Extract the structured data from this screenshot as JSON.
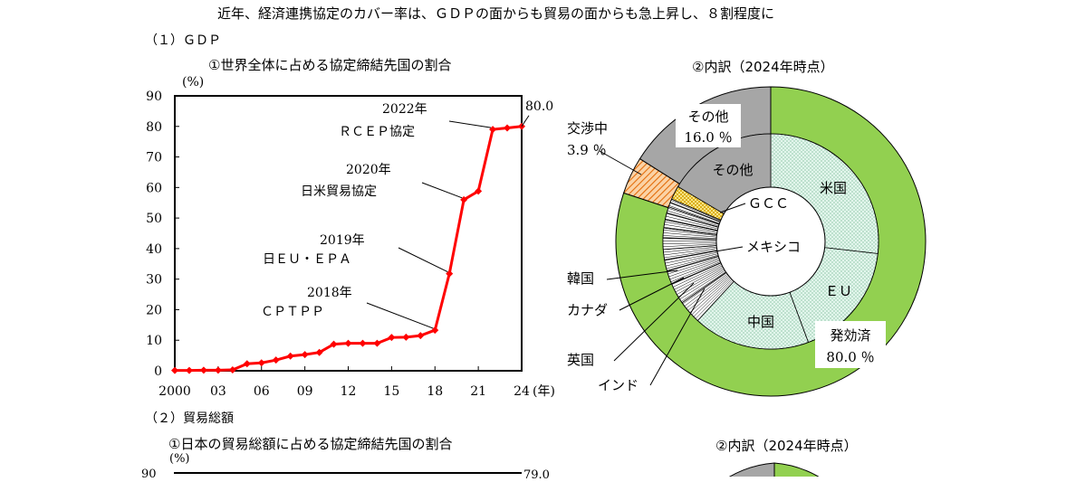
{
  "page": {
    "headline": "近年、経済連携協定のカバー率は、ＧＤＰの面からも貿易の面からも急上昇し、８割程度に",
    "section1": "（１）ＧＤＰ",
    "section2": "（２）貿易総額"
  },
  "chart_data": [
    {
      "type": "line",
      "title": "①世界全体に占める協定締結先国の割合",
      "ylabel": "(%)",
      "xunit": "(年)",
      "ylim": [
        0,
        90
      ],
      "yticks": [
        0,
        10,
        20,
        30,
        40,
        50,
        60,
        70,
        80,
        90
      ],
      "xticks": [
        "2000",
        "03",
        "06",
        "09",
        "12",
        "15",
        "18",
        "21",
        "24"
      ],
      "xtick_years": [
        2000,
        2003,
        2006,
        2009,
        2012,
        2015,
        2018,
        2021,
        2024
      ],
      "xlim": [
        2000,
        2024
      ],
      "line_color": "#ff0000",
      "x": [
        2000,
        2001,
        2002,
        2003,
        2004,
        2005,
        2006,
        2007,
        2008,
        2009,
        2010,
        2011,
        2012,
        2013,
        2014,
        2015,
        2016,
        2017,
        2018,
        2019,
        2020,
        2021,
        2022,
        2023,
        2024
      ],
      "values": [
        0.1,
        0.1,
        0.2,
        0.2,
        0.3,
        2.3,
        2.6,
        3.5,
        4.8,
        5.3,
        6.0,
        8.7,
        9.0,
        9.0,
        9.0,
        10.9,
        11.0,
        11.5,
        13.3,
        31.8,
        56.0,
        58.8,
        79.0,
        79.5,
        80.0
      ],
      "end_label": "80.0",
      "annotations": [
        {
          "year_label": "2018年",
          "text": "ＣＰＴＰＰ",
          "x": 2018
        },
        {
          "year_label": "2019年",
          "text": "日ＥＵ・ＥＰＡ",
          "x": 2019
        },
        {
          "year_label": "2020年",
          "text": "日米貿易協定",
          "x": 2020
        },
        {
          "year_label": "2022年",
          "text": "ＲＣＥＰ協定",
          "x": 2022
        }
      ]
    },
    {
      "type": "pie",
      "title": "②内訳（2024年時点）",
      "outer": [
        {
          "name": "発効済",
          "value": 80.0,
          "color": "#92d050",
          "value_label": "80.0 ％"
        },
        {
          "name": "交渉中",
          "value": 3.9,
          "color": "#f79646",
          "value_label": "3.9 ％"
        },
        {
          "name": "その他",
          "value": 16.0,
          "color": "#a6a6a6",
          "value_label": "16.0 ％"
        }
      ],
      "inner": [
        {
          "name": "米国",
          "value": 26.0
        },
        {
          "name": "ＥＵ",
          "value": 17.0
        },
        {
          "name": "中国",
          "value": 17.0
        },
        {
          "name": "インド",
          "value": 3.4
        },
        {
          "name": "英国",
          "value": 3.1
        },
        {
          "name": "カナダ",
          "value": 2.0
        },
        {
          "name": "韓国",
          "value": 1.6
        },
        {
          "name": "",
          "value": 1.5
        },
        {
          "name": "メキシコ",
          "value": 1.7
        },
        {
          "name": "",
          "value": 1.4
        },
        {
          "name": "",
          "value": 1.2
        },
        {
          "name": "",
          "value": 1.0
        },
        {
          "name": "",
          "value": 0.9
        },
        {
          "name": "",
          "value": 0.7
        },
        {
          "name": "",
          "value": 0.5
        },
        {
          "name": "ＧＣＣ",
          "value": 2.0
        },
        {
          "name": "その他",
          "value": 16.0
        }
      ]
    }
  ],
  "chart2": {
    "title": "①日本の貿易総額に占める協定締結先国の割合",
    "ylabel": "(%)",
    "first_tick": "90",
    "end_label": "79.0"
  },
  "pie2": {
    "title": "②内訳（2024年時点）"
  }
}
